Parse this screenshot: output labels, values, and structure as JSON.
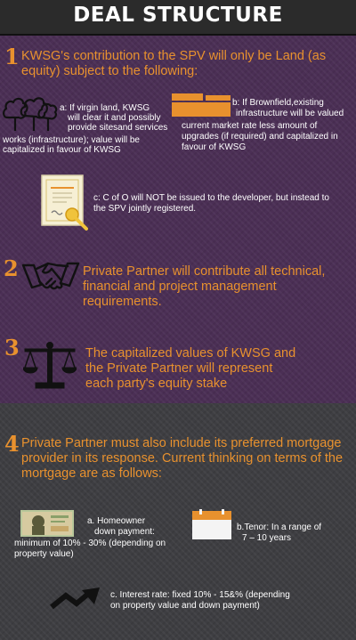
{
  "header": {
    "title": "DEAL STRUCTURE"
  },
  "section1": {
    "number": "1",
    "line1": "KWSG's contribution to the SPV will only be Land (as",
    "line2": "equity) subject to the following:",
    "item_a": {
      "line1": "a: If virgin land, KWSG",
      "line2": "will clear it and possibly",
      "line3": "provide sitesand services",
      "line4": "works (infrastructure); value will be",
      "line5": "capitalized in favour of KWSG",
      "icon": "trees-icon"
    },
    "item_b": {
      "line1": "b: If Brownfield,existing",
      "line2": "infrastructure will be valued",
      "line3": "current market rate less amount of",
      "line4": "upgrades (if required) and capitalized in",
      "line5": "favour of KWSG",
      "icon": "building-icon"
    },
    "item_c": {
      "line1": "c: C of O will NOT be issued to the developer, but instead to",
      "line2": "the SPV jointly registered.",
      "icon": "certificate-icon"
    }
  },
  "section2": {
    "number": "2",
    "line1": "Private Partner will contribute all technical,",
    "line2": "financial and project management",
    "line3": "requirements.",
    "icon": "handshake-icon"
  },
  "section3": {
    "number": "3",
    "line1": "The capitalized values of KWSG and",
    "line2": "the Private Partner will represent",
    "line3": "each party's equity stake",
    "icon": "scales-icon"
  },
  "section4": {
    "number": "4",
    "line1": "Private Partner must also include its preferred mortgage",
    "line2": "provider in its response. Current thinking on terms of the",
    "line3": "mortgage are as follows:",
    "item_a": {
      "line1": "a. Homeowner",
      "line2": "down payment:",
      "line3": "minimum of 10% - 30% (depending on",
      "line4": "property value)",
      "icon": "banknote-icon"
    },
    "item_b": {
      "line1": "b.Tenor: In a range of",
      "line2": "7 – 10 years",
      "icon": "calendar-icon"
    },
    "item_c": {
      "line1": "c. Interest rate: fixed 10% - 15&% (depending",
      "line2": "on property value and down payment)",
      "icon": "trend-arrow-icon"
    }
  },
  "colors": {
    "accent": "#e8912e",
    "purple_bg": "#4b2f55",
    "gray_bg": "#3e3e42",
    "header_bg": "#2b2b2b"
  }
}
